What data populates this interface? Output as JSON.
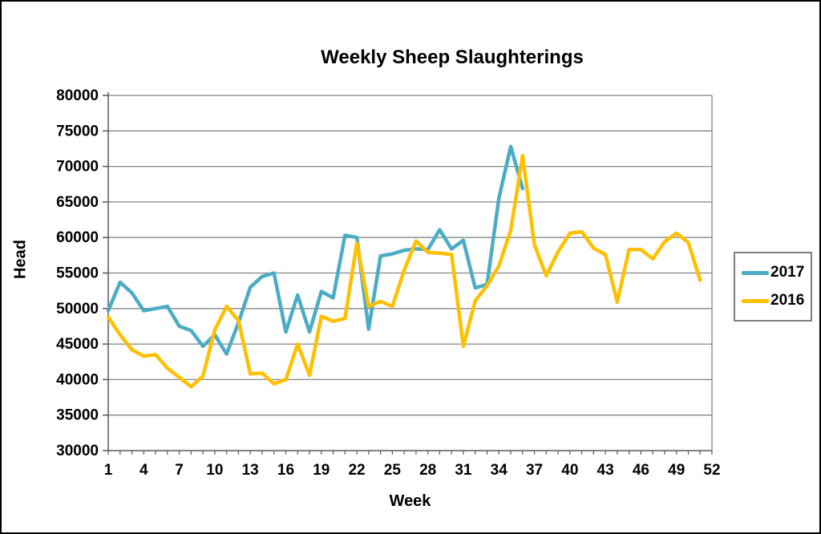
{
  "chart_data": {
    "type": "line",
    "title": "Weekly Sheep Slaughterings",
    "xlabel": "Week",
    "ylabel": "Head",
    "xlim": [
      1,
      52
    ],
    "ylim": [
      30000,
      80000
    ],
    "x_ticks": [
      1,
      4,
      7,
      10,
      13,
      16,
      19,
      22,
      25,
      28,
      31,
      34,
      37,
      40,
      43,
      46,
      49,
      52
    ],
    "y_ticks": [
      30000,
      35000,
      40000,
      45000,
      50000,
      55000,
      60000,
      65000,
      70000,
      75000,
      80000
    ],
    "grid": true,
    "legend_position": "right",
    "x_unit": "week",
    "x_start": 1,
    "x_step": 1,
    "series": [
      {
        "name": "2017",
        "color": "#4BACC6",
        "values": [
          49700,
          53700,
          52200,
          49700,
          50000,
          50300,
          47500,
          46900,
          44700,
          46300,
          43600,
          48000,
          53000,
          54500,
          55000,
          46700,
          51900,
          46700,
          52400,
          51500,
          60300,
          60000,
          47100,
          57400,
          57700,
          58200,
          58400,
          58300,
          61100,
          58400,
          59600,
          52900,
          53400,
          65500,
          72800,
          66900
        ]
      },
      {
        "name": "2016",
        "color": "#FFC000",
        "values": [
          48800,
          46300,
          44200,
          43300,
          43500,
          41600,
          40300,
          39000,
          40500,
          47000,
          50300,
          48300,
          40800,
          40900,
          39400,
          40000,
          45000,
          40600,
          48900,
          48200,
          48600,
          59200,
          50300,
          51000,
          50300,
          55400,
          59500,
          57900,
          57800,
          57600,
          44700,
          51100,
          53200,
          56000,
          61000,
          71500,
          59000,
          54600,
          58000,
          60600,
          60800,
          58500,
          57600,
          50900,
          58300,
          58300,
          57000,
          59400,
          60600,
          59300,
          54000
        ]
      }
    ]
  },
  "legend": {
    "items": [
      {
        "label": "2017",
        "color": "#4BACC6"
      },
      {
        "label": "2016",
        "color": "#FFC000"
      }
    ]
  },
  "colors": {
    "background": "#ffffff",
    "frame_border": "#000000",
    "gridline": "#848484",
    "axis_line": "#595959",
    "text": "#000000",
    "legend_border": "#7f7f7f"
  }
}
